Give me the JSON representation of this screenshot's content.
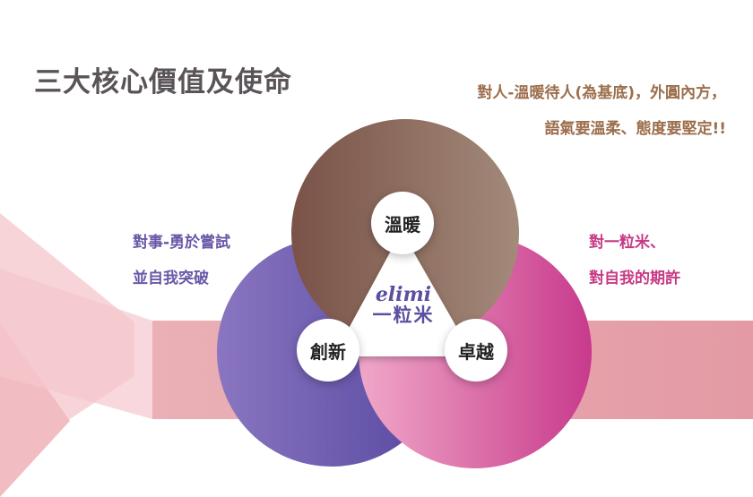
{
  "title": "三大核心價值及使命",
  "top_note": {
    "line1": "對人-溫暖待人(為基底)，外圓內方，",
    "line2": "語氣要溫柔、態度要堅定!!"
  },
  "left_note": {
    "line1": "對事-勇於嘗試",
    "line2": "並自我突破"
  },
  "right_note": {
    "line1": "對一粒米、",
    "line2": "對自我的期許"
  },
  "values": [
    {
      "label": "溫暖",
      "color": "#8a6a5c"
    },
    {
      "label": "創新",
      "color": "#6a58a8"
    },
    {
      "label": "卓越",
      "color": "#d0509a"
    }
  ],
  "center_logo": {
    "script": "elimi",
    "name": "一粒米"
  },
  "colors": {
    "band": "#e8a4ac",
    "accent_pink": "#f3c6cc",
    "title": "#5a5458"
  }
}
